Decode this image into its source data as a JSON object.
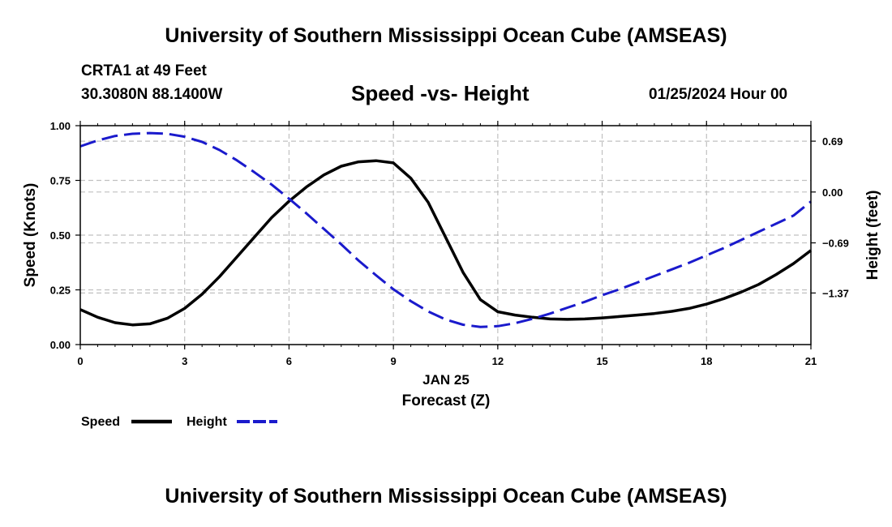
{
  "header": {
    "title": "University of Southern Mississippi Ocean Cube (AMSEAS)",
    "station": "CRTA1 at 49 Feet",
    "coords": "30.3080N  88.1400W",
    "subtitle": "Speed -vs- Height",
    "datetime": "01/25/2024 Hour 00"
  },
  "footer": {
    "title": "University of Southern Mississippi Ocean Cube (AMSEAS)"
  },
  "colors": {
    "speed": "#000000",
    "height": "#1a1acc",
    "grid": "#c0c0c0"
  },
  "chart_data": {
    "type": "line",
    "title": "Speed -vs- Height",
    "xlabel": "Forecast (Z)",
    "xlabel_date": "JAN 25",
    "ylabel": "Speed (Knots)",
    "y2label": "Height (feet)",
    "xlim": [
      0,
      21
    ],
    "ylim": [
      0,
      1
    ],
    "y2lim": [
      -2.07,
      0.9
    ],
    "grid": true,
    "x_ticks": [
      0,
      3,
      6,
      9,
      12,
      15,
      18,
      21
    ],
    "x_tick_labels": [
      "0",
      "3",
      "6",
      "9",
      "12",
      "15",
      "18",
      "21"
    ],
    "y_ticks": [
      0,
      0.25,
      0.5,
      0.75,
      1.0
    ],
    "y_tick_labels": [
      "0.00",
      "0.25",
      "0.50",
      "0.75",
      "1.00"
    ],
    "y2_ticks": [
      0.69,
      0.0,
      -0.69,
      -1.37
    ],
    "y2_tick_labels": [
      "0.69",
      "0.00",
      "−0.69",
      "−1.37"
    ],
    "legend": [
      {
        "label": "Speed",
        "series": "speed"
      },
      {
        "label": "Height",
        "series": "height"
      }
    ],
    "series": [
      {
        "name": "Speed",
        "axis": "left",
        "style": "solid",
        "x": [
          0,
          0.5,
          1,
          1.5,
          2,
          2.5,
          3,
          3.5,
          4,
          4.5,
          5,
          5.5,
          6,
          6.5,
          7,
          7.5,
          8,
          8.5,
          9,
          9.5,
          10,
          10.5,
          11,
          11.5,
          12,
          12.5,
          13,
          13.5,
          14,
          14.5,
          15,
          15.5,
          16,
          16.5,
          17,
          17.5,
          18,
          18.5,
          19,
          19.5,
          20,
          20.5,
          21
        ],
        "values": [
          0.16,
          0.125,
          0.1,
          0.09,
          0.095,
          0.12,
          0.165,
          0.23,
          0.31,
          0.4,
          0.49,
          0.58,
          0.655,
          0.72,
          0.775,
          0.815,
          0.835,
          0.84,
          0.83,
          0.76,
          0.65,
          0.49,
          0.33,
          0.205,
          0.15,
          0.135,
          0.125,
          0.117,
          0.115,
          0.117,
          0.122,
          0.128,
          0.135,
          0.142,
          0.152,
          0.165,
          0.185,
          0.21,
          0.24,
          0.275,
          0.32,
          0.37,
          0.43
        ]
      },
      {
        "name": "Height",
        "axis": "right",
        "style": "dashed",
        "x": [
          0,
          0.5,
          1,
          1.5,
          2,
          2.5,
          3,
          3.5,
          4,
          4.5,
          5,
          5.5,
          6,
          6.5,
          7,
          7.5,
          8,
          8.5,
          9,
          9.5,
          10,
          10.5,
          11,
          11.5,
          12,
          12.5,
          13,
          13.5,
          14,
          14.5,
          15,
          15.5,
          16,
          16.5,
          17,
          17.5,
          18,
          18.5,
          19,
          19.5,
          20,
          20.5,
          21
        ],
        "values": [
          0.62,
          0.7,
          0.76,
          0.79,
          0.8,
          0.79,
          0.75,
          0.68,
          0.57,
          0.43,
          0.27,
          0.1,
          -0.09,
          -0.29,
          -0.5,
          -0.71,
          -0.93,
          -1.13,
          -1.32,
          -1.48,
          -1.62,
          -1.73,
          -1.8,
          -1.83,
          -1.82,
          -1.78,
          -1.72,
          -1.65,
          -1.57,
          -1.49,
          -1.4,
          -1.32,
          -1.23,
          -1.14,
          -1.05,
          -0.96,
          -0.86,
          -0.76,
          -0.65,
          -0.54,
          -0.43,
          -0.32,
          -0.13
        ]
      }
    ]
  }
}
